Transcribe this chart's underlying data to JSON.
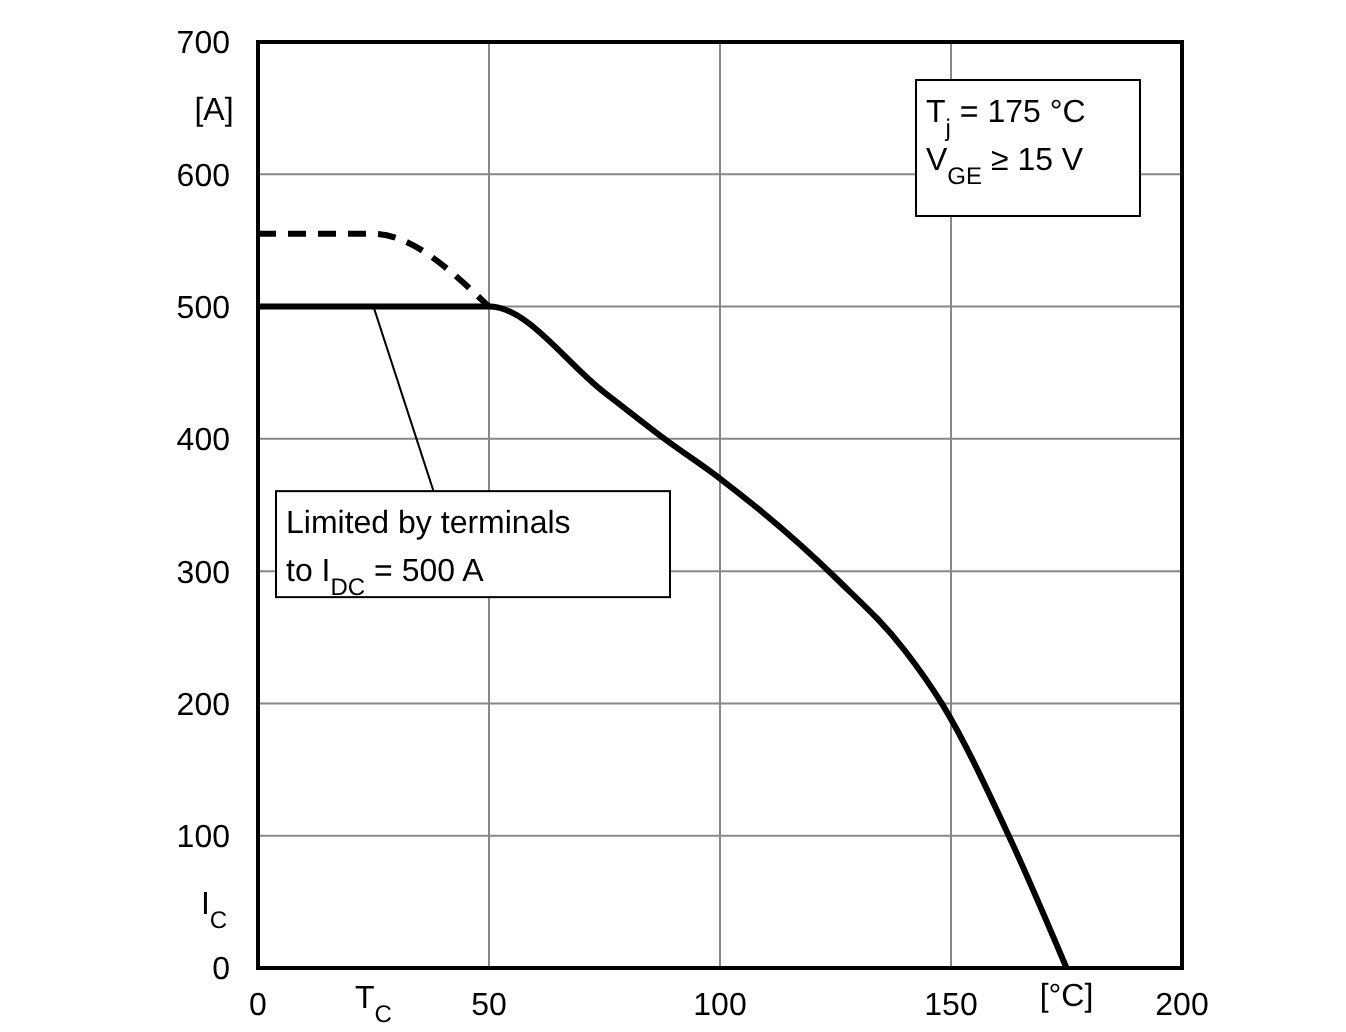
{
  "chart_data": {
    "type": "line",
    "xlabel": "T$_{C}$",
    "ylabel": "I$_{C}$",
    "xlim": [
      0,
      200
    ],
    "xticks": [
      0,
      50,
      100,
      150,
      200
    ],
    "ylim": [
      0,
      700
    ],
    "yticks": [
      0,
      100,
      200,
      300,
      400,
      500,
      600,
      700
    ],
    "grid": true,
    "marker": "none",
    "series": [
      {
        "color": "#000000",
        "line_style": "solid",
        "x": [
          0,
          50,
          75,
          88,
          100,
          125,
          140,
          148,
          162.5,
          175
        ],
        "values": [
          500,
          500,
          435,
          400,
          370,
          295,
          240,
          200,
          100,
          0
        ]
      },
      {
        "color": "#000000",
        "line_style": "dashed",
        "x": [
          0,
          25,
          50
        ],
        "values": [
          555,
          555,
          500
        ]
      }
    ],
    "annotations": [
      "T$_{j}$ = 175 °C\nV$_{GE}$ ≥ 15 V",
      {
        "text": "Limited by terminals\nto I$_{DC}$ = 500 A",
        "x": 25,
        "y": 500
      },
      "[A]",
      "[°C]"
    ]
  }
}
